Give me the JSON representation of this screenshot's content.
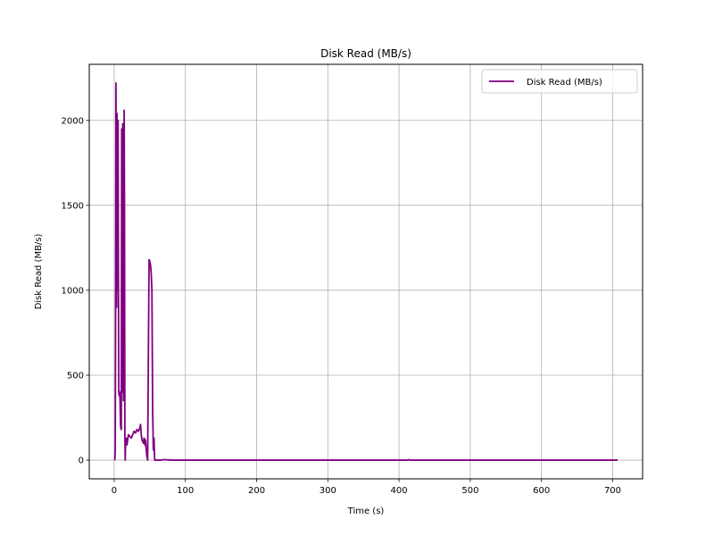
{
  "chart_data": {
    "type": "line",
    "title": "Disk Read (MB/s)",
    "xlabel": "Time (s)",
    "ylabel": "Disk Read (MB/s)",
    "xlim": [
      -35,
      742
    ],
    "ylim": [
      -110,
      2330
    ],
    "xticks": [
      0,
      100,
      200,
      300,
      400,
      500,
      600,
      700
    ],
    "yticks": [
      0,
      500,
      1000,
      1500,
      2000
    ],
    "grid": true,
    "legend_position": "top-right",
    "series": [
      {
        "name": "Disk Read (MB/s)",
        "color": "#800080",
        "x": [
          0,
          1,
          1.5,
          2,
          2.5,
          3,
          3.5,
          4,
          4.5,
          5,
          5.5,
          6,
          6.5,
          7,
          8,
          9,
          10,
          10.5,
          11,
          11.5,
          12,
          12.5,
          13,
          13.5,
          14,
          14.5,
          15,
          15.5,
          16,
          17,
          18,
          20,
          22,
          24,
          26,
          28,
          30,
          32,
          34,
          36,
          37,
          38,
          39,
          40,
          41,
          42,
          43,
          44,
          45,
          46,
          47,
          48,
          49,
          50,
          51,
          52,
          53,
          54,
          55,
          56,
          56.5,
          57,
          58,
          59,
          60,
          62,
          65,
          70,
          80,
          100,
          200,
          300,
          400,
          412,
          413,
          414,
          415,
          500,
          600,
          700,
          707
        ],
        "y": [
          0,
          5,
          50,
          800,
          2220,
          1500,
          900,
          2040,
          1300,
          1000,
          2000,
          1100,
          400,
          380,
          400,
          200,
          180,
          1950,
          1700,
          400,
          1980,
          1200,
          350,
          500,
          2060,
          1500,
          150,
          0,
          100,
          130,
          90,
          150,
          140,
          130,
          150,
          170,
          160,
          180,
          170,
          190,
          210,
          150,
          120,
          110,
          100,
          130,
          90,
          120,
          60,
          20,
          0,
          600,
          1180,
          1170,
          1150,
          1100,
          1000,
          300,
          60,
          130,
          40,
          0,
          0,
          0,
          0,
          0,
          0,
          3,
          0,
          0,
          0,
          0,
          0,
          0,
          3,
          2,
          0,
          0,
          0,
          0,
          0
        ]
      }
    ]
  }
}
